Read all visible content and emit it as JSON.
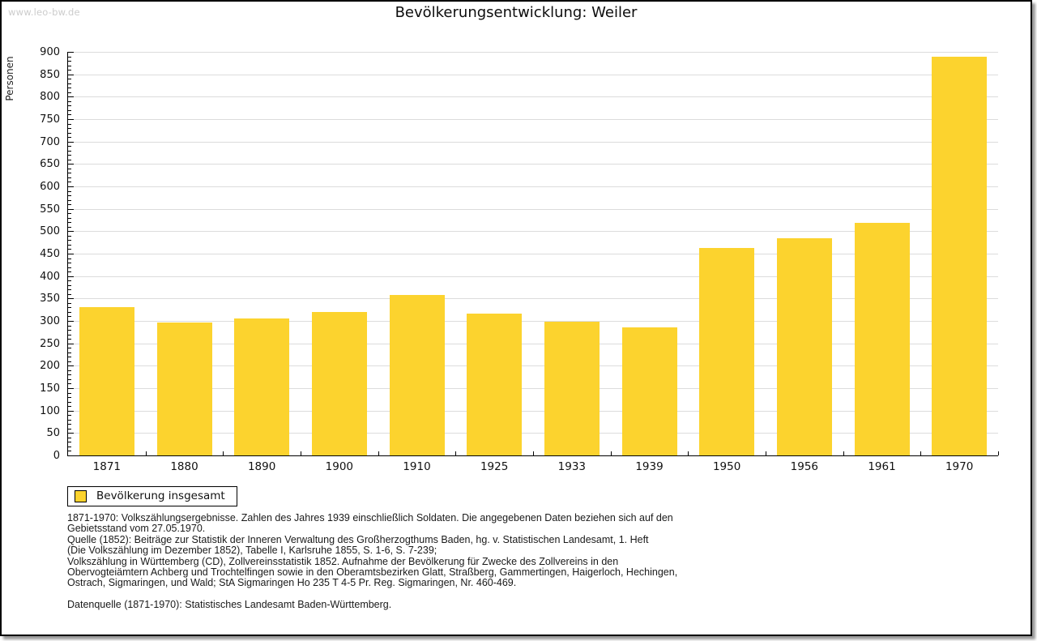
{
  "watermark": "www.leo-bw.de",
  "header": {
    "title": "Bevölkerungsentwicklung: Weiler"
  },
  "chart_data": {
    "type": "bar",
    "title": "Bevölkerungsentwicklung: Weiler",
    "xlabel": "",
    "ylabel": "Personen",
    "categories": [
      "1871",
      "1880",
      "1890",
      "1900",
      "1910",
      "1925",
      "1933",
      "1939",
      "1950",
      "1956",
      "1961",
      "1970"
    ],
    "values": [
      330,
      297,
      306,
      320,
      357,
      316,
      299,
      285,
      462,
      484,
      519,
      890
    ],
    "ylim": [
      0,
      900
    ],
    "ytick_step": 50,
    "yminor_step": 10,
    "grid": true,
    "legend_position": "bottom-left",
    "bar_color": "#FCD32E",
    "grid_color": "#DCDCDC",
    "axis_color": "#000000"
  },
  "legend": {
    "label": "Bevölkerung insgesamt",
    "swatch_color": "#FCD32E"
  },
  "footer": {
    "source_lines": [
      "1871-1970: Volkszählungsergebnisse. Zahlen des Jahres 1939 einschließlich Soldaten. Die angegebenen Daten beziehen sich auf den",
      "Gebietsstand vom 27.05.1970.",
      "Quelle (1852): Beiträge zur Statistik der Inneren Verwaltung des Großherzogthums Baden, hg. v. Statistischen Landesamt, 1. Heft",
      "(Die Volkszählung im Dezember 1852), Tabelle I, Karlsruhe 1855, S. 1-6, S. 7-239;",
      "Volkszählung in Württemberg (CD), Zollvereinsstatistik 1852. Aufnahme der Bevölkerung für Zwecke des Zollvereins in den",
      "Obervogteiämtern Achberg und Trochtelfingen sowie in den Oberamtsbezirken Glatt, Straßberg, Gammertingen, Haigerloch, Hechingen,",
      "Ostrach, Sigmaringen, und Wald; StA Sigmaringen Ho 235 T 4-5 Pr. Reg. Sigmaringen, Nr. 460-469."
    ],
    "datasource": "Datenquelle (1871-1970): Statistisches Landesamt Baden-Württemberg."
  }
}
